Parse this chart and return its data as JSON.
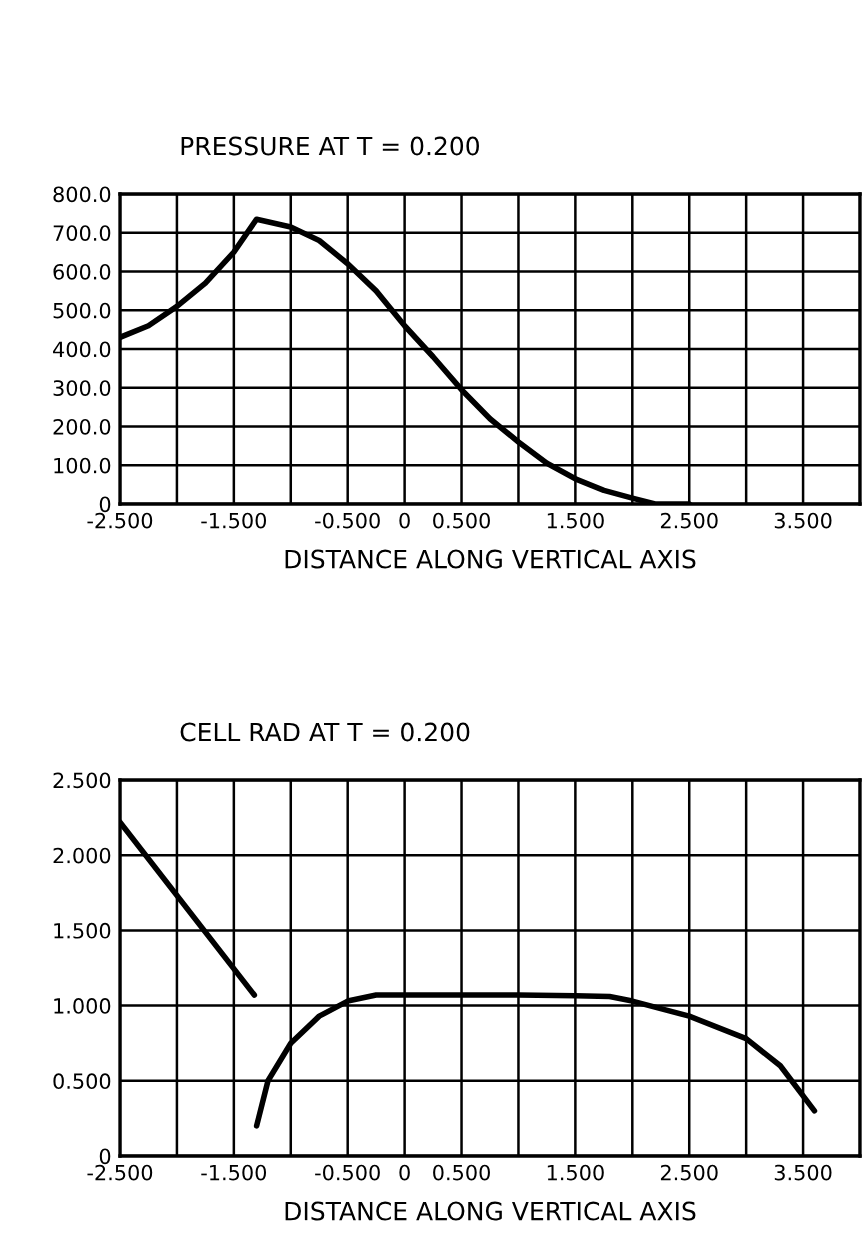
{
  "chart_data": [
    {
      "type": "line",
      "title": "PRESSURE AT T = 0.200",
      "xlabel": "DISTANCE ALONG VERTICAL AXIS",
      "series": [
        {
          "color": "#000000",
          "x": [
            -2.5,
            -2.25,
            -2.0,
            -1.75,
            -1.5,
            -1.3,
            -1.0,
            -0.75,
            -0.5,
            -0.25,
            0,
            0.25,
            0.5,
            0.75,
            1.0,
            1.25,
            1.5,
            1.75,
            2.0,
            2.2,
            2.5
          ],
          "values": [
            430,
            460,
            510,
            570,
            650,
            735,
            715,
            680,
            620,
            550,
            460,
            380,
            295,
            220,
            160,
            105,
            65,
            35,
            15,
            0,
            0
          ]
        }
      ],
      "xlim": [
        -2.5,
        4.0
      ],
      "xticks": [
        {
          "value": -2.5,
          "label": "-2.500"
        },
        {
          "value": -2.0,
          "label": null
        },
        {
          "value": -1.5,
          "label": "-1.500"
        },
        {
          "value": -1.0,
          "label": null
        },
        {
          "value": -0.5,
          "label": "-0.500"
        },
        0,
        {
          "value": 0.5,
          "label": "0.500"
        },
        {
          "value": 1.0,
          "label": null
        },
        {
          "value": 1.5,
          "label": "1.500"
        },
        {
          "value": 2.0,
          "label": null
        },
        {
          "value": 2.5,
          "label": "2.500"
        },
        {
          "value": 3.0,
          "label": null
        },
        {
          "value": 3.5,
          "label": "3.500"
        },
        {
          "value": 4.0,
          "label": null
        }
      ],
      "ylim": [
        0,
        800
      ],
      "yticks": [
        0,
        {
          "value": 100,
          "label": "100.0"
        },
        {
          "value": 200,
          "label": "200.0"
        },
        {
          "value": 300,
          "label": "300.0"
        },
        {
          "value": 400,
          "label": "400.0"
        },
        {
          "value": 500,
          "label": "500.0"
        },
        {
          "value": 600,
          "label": "600.0"
        },
        {
          "value": 700,
          "label": "700.0"
        },
        {
          "value": 800,
          "label": "800.0"
        }
      ],
      "grid": true,
      "line_style": "solid"
    },
    {
      "type": "line",
      "title": "CELL RAD AT T = 0.200",
      "xlabel": "DISTANCE ALONG VERTICAL AXIS",
      "series": [
        {
          "color": "#000000",
          "x": [
            -2.5,
            -1.32
          ],
          "values": [
            2.22,
            1.07
          ]
        },
        {
          "color": "#000000",
          "x": [
            -1.3,
            -1.2,
            -1.0,
            -0.75,
            -0.5,
            -0.25,
            0,
            0.5,
            1.0,
            1.5,
            1.8,
            2.0,
            2.5,
            3.0,
            3.3,
            3.6
          ],
          "values": [
            0.2,
            0.5,
            0.75,
            0.93,
            1.03,
            1.07,
            1.07,
            1.07,
            1.07,
            1.065,
            1.06,
            1.03,
            0.93,
            0.78,
            0.6,
            0.3
          ]
        }
      ],
      "xlim": [
        -2.5,
        4.0
      ],
      "xticks": [
        {
          "value": -2.5,
          "label": "-2.500"
        },
        {
          "value": -2.0,
          "label": null
        },
        {
          "value": -1.5,
          "label": "-1.500"
        },
        {
          "value": -1.0,
          "label": null
        },
        {
          "value": -0.5,
          "label": "-0.500"
        },
        0,
        {
          "value": 0.5,
          "label": "0.500"
        },
        {
          "value": 1.0,
          "label": null
        },
        {
          "value": 1.5,
          "label": "1.500"
        },
        {
          "value": 2.0,
          "label": null
        },
        {
          "value": 2.5,
          "label": "2.500"
        },
        {
          "value": 3.0,
          "label": null
        },
        {
          "value": 3.5,
          "label": "3.500"
        },
        {
          "value": 4.0,
          "label": null
        }
      ],
      "ylim": [
        0,
        2.5
      ],
      "yticks": [
        0,
        {
          "value": 0.5,
          "label": "0.500"
        },
        {
          "value": 1.0,
          "label": "1.000"
        },
        {
          "value": 1.5,
          "label": "1.500"
        },
        {
          "value": 2.0,
          "label": "2.000"
        },
        {
          "value": 2.5,
          "label": "2.500"
        }
      ],
      "grid": true,
      "line_style": "solid"
    }
  ]
}
